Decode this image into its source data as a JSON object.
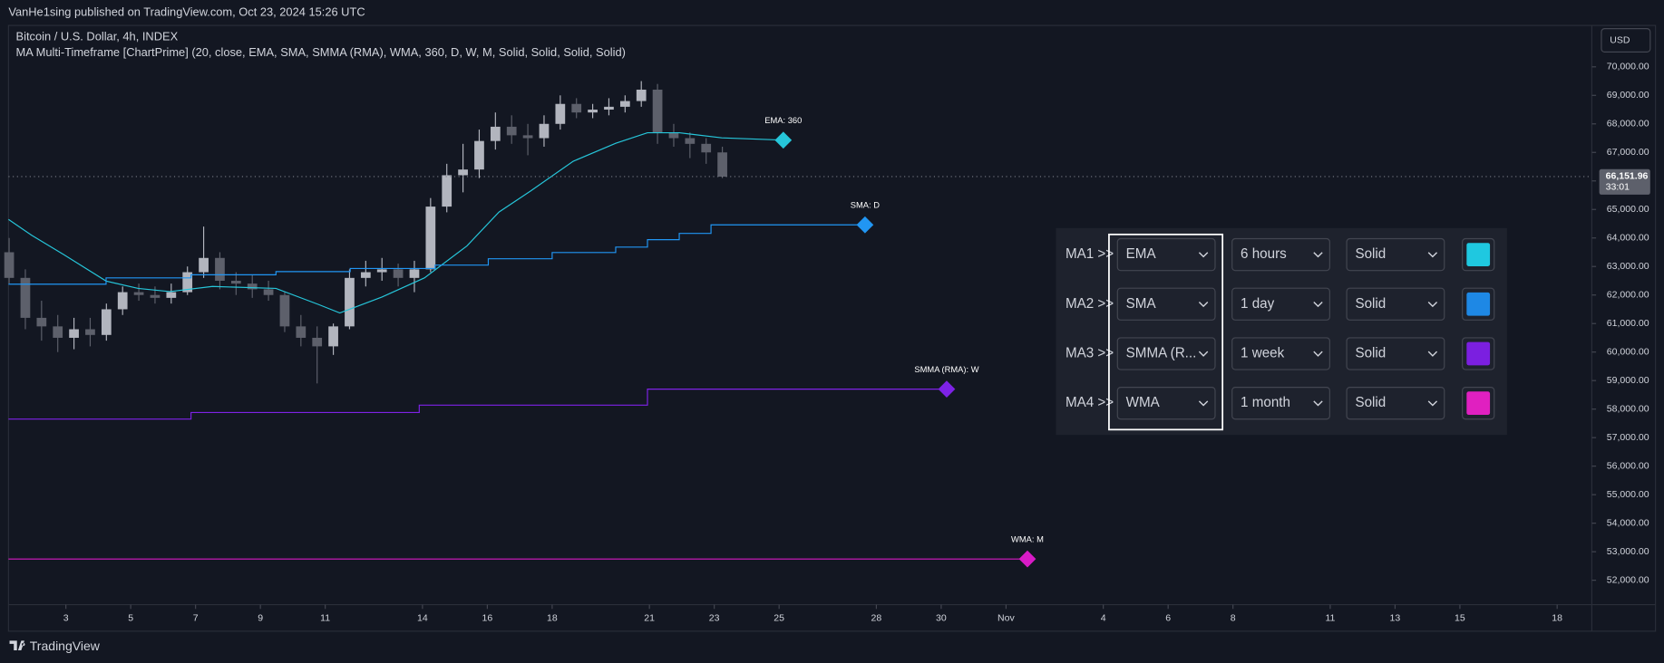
{
  "header": {
    "title": "VanHe1sing published on TradingView.com, Oct 23, 2024 15:26 UTC"
  },
  "chart_data": {
    "type": "candlestick",
    "title": "Bitcoin / U.S. Dollar, 4h, INDEX",
    "subtitle": "MA Multi-Timeframe [ChartPrime] (20, close, EMA, SMA, SMMA (RMA), WMA, 360, D, W, M, Solid, Solid, Solid, Solid)",
    "currency": "USD",
    "up_color": "#b2b5be",
    "down_color": "#5d606b",
    "xlim": [
      1.23,
      50.07
    ],
    "xticks": [
      3,
      5,
      7,
      9,
      11,
      14,
      16,
      18,
      21,
      23,
      25,
      28,
      30,
      {
        "value": 32,
        "label": "Nov"
      },
      {
        "value": 35,
        "label": "4"
      },
      {
        "value": 37,
        "label": "6"
      },
      {
        "value": 39,
        "label": "8"
      },
      {
        "value": 42,
        "label": "11"
      },
      {
        "value": 44,
        "label": "13"
      },
      {
        "value": 46,
        "label": "15"
      },
      {
        "value": 49,
        "label": "18"
      }
    ],
    "ylim": [
      51330,
      71525
    ],
    "yticks": [
      {
        "value": 52000,
        "label": "52,000.00"
      },
      {
        "value": 53000,
        "label": "53,000.00"
      },
      {
        "value": 54000,
        "label": "54,000.00"
      },
      {
        "value": 55000,
        "label": "55,000.00"
      },
      {
        "value": 56000,
        "label": "56,000.00"
      },
      {
        "value": 57000,
        "label": "57,000.00"
      },
      {
        "value": 58000,
        "label": "58,000.00"
      },
      {
        "value": 59000,
        "label": "59,000.00"
      },
      {
        "value": 60000,
        "label": "60,000.00"
      },
      {
        "value": 61000,
        "label": "61,000.00"
      },
      {
        "value": 62000,
        "label": "62,000.00"
      },
      {
        "value": 63000,
        "label": "63,000.00"
      },
      {
        "value": 64000,
        "label": "64,000.00"
      },
      {
        "value": 65000,
        "label": "65,000.00"
      },
      {
        "value": 66000,
        "label": "66,000.00"
      },
      {
        "value": 67000,
        "label": "67,000.00"
      },
      {
        "value": 68000,
        "label": "68,000.00"
      },
      {
        "value": 69000,
        "label": "69,000.00"
      },
      {
        "value": 70000,
        "label": "70,000.00"
      }
    ],
    "last_price": {
      "value": 66151.96,
      "label": "66,151.96"
    },
    "countdown": "33:01",
    "candles": {
      "x": [
        1.25,
        1.75,
        2.25,
        2.75,
        3.25,
        3.75,
        4.25,
        4.75,
        5.25,
        5.75,
        6.25,
        6.75,
        7.25,
        7.75,
        8.25,
        8.75,
        9.25,
        9.75,
        10.25,
        10.75,
        11.25,
        11.75,
        12.25,
        12.75,
        13.25,
        13.75,
        14.25,
        14.75,
        15.25,
        15.75,
        16.25,
        16.75,
        17.25,
        17.75,
        18.25,
        18.75,
        19.25,
        19.75,
        20.25,
        20.75,
        21.25,
        21.75,
        22.25,
        22.75,
        23.25
      ],
      "open": [
        63500,
        62600,
        61200,
        60900,
        60500,
        60800,
        60600,
        61500,
        62100,
        62000,
        61900,
        62100,
        62800,
        63300,
        62500,
        62400,
        62200,
        62000,
        60900,
        60500,
        60200,
        60900,
        62600,
        62800,
        62900,
        62600,
        62900,
        65100,
        66200,
        66400,
        67400,
        67900,
        67600,
        67500,
        68000,
        68700,
        68400,
        68500,
        68600,
        68800,
        69200,
        67700,
        67500,
        67300,
        67000
      ],
      "high": [
        64000,
        62900,
        61800,
        61300,
        61200,
        61200,
        61700,
        62300,
        62400,
        62300,
        62400,
        63000,
        64400,
        63500,
        62800,
        62700,
        62500,
        62100,
        61300,
        60900,
        61000,
        62900,
        63200,
        63300,
        63100,
        63200,
        65400,
        66600,
        67300,
        67800,
        68400,
        68300,
        68000,
        68300,
        69000,
        68900,
        68700,
        68900,
        69000,
        69500,
        69400,
        68000,
        67700,
        67500,
        67200
      ],
      "low": [
        62400,
        60800,
        60400,
        60000,
        60100,
        60200,
        60400,
        61300,
        61800,
        61700,
        61700,
        62000,
        62600,
        62200,
        62000,
        61900,
        61800,
        60700,
        60200,
        58900,
        59900,
        60800,
        62300,
        62500,
        62300,
        62100,
        62800,
        64900,
        65600,
        66100,
        67100,
        67300,
        66900,
        67200,
        67800,
        68200,
        68200,
        68300,
        68400,
        68600,
        67300,
        67200,
        66800,
        66600,
        66100
      ],
      "close": [
        62600,
        61200,
        60900,
        60500,
        60800,
        60600,
        61500,
        62100,
        62000,
        61900,
        62100,
        62800,
        63300,
        62500,
        62400,
        62200,
        62000,
        60900,
        60500,
        60200,
        60900,
        62600,
        62800,
        62900,
        62600,
        62900,
        65100,
        66200,
        66400,
        67400,
        67900,
        67600,
        67500,
        68000,
        68700,
        68400,
        68500,
        68600,
        68800,
        69200,
        67700,
        67500,
        67300,
        67000,
        66150
      ]
    },
    "series": [
      {
        "name": "EMA: 360",
        "color": "#26c6da",
        "x": [
          1.23,
          1.95,
          2.93,
          4.24,
          5.23,
          6.21,
          7.52,
          9.48,
          10.79,
          11.45,
          12.75,
          14.06,
          15.37,
          16.36,
          17.34,
          18.65,
          19.96,
          20.94,
          21.92,
          23.23,
          25.13
        ],
        "values": [
          64650,
          64090,
          63420,
          62490,
          62230,
          62120,
          62300,
          62230,
          61670,
          61370,
          61930,
          62600,
          63720,
          64910,
          65650,
          66690,
          67320,
          67690,
          67690,
          67510,
          67430
        ]
      },
      {
        "name": "SMA: D",
        "color": "#2196f3",
        "x": [
          1.23,
          4.24,
          4.24,
          6.86,
          6.86,
          9.48,
          9.48,
          11.77,
          11.77,
          14.39,
          14.39,
          16.03,
          16.03,
          18.0,
          18.0,
          19.96,
          19.96,
          20.94,
          20.94,
          21.92,
          21.92,
          22.9,
          22.9,
          27.65
        ],
        "values": [
          62380,
          62380,
          62600,
          62600,
          62710,
          62710,
          62820,
          62820,
          62930,
          62930,
          63050,
          63050,
          63270,
          63270,
          63490,
          63490,
          63680,
          63680,
          63940,
          63940,
          64160,
          64160,
          64460,
          64460
        ]
      },
      {
        "name": "SMMA (RMA): W",
        "color": "#7e22e6",
        "x": [
          1.23,
          6.86,
          6.86,
          13.9,
          13.9,
          20.94,
          20.94,
          30.17
        ],
        "values": [
          57650,
          57650,
          57880,
          57880,
          58140,
          58140,
          58700,
          58700
        ]
      },
      {
        "name": "WMA: M",
        "color": "#d81bc6",
        "x": [
          1.23,
          32.66
        ],
        "values": [
          52745,
          52745
        ]
      }
    ]
  },
  "settings_panel": {
    "rows": [
      {
        "label": "MA1 >>",
        "type": "EMA",
        "timeframe": "6 hours",
        "style": "Solid",
        "color": "#1fc8e0"
      },
      {
        "label": "MA2 >>",
        "type": "SMA",
        "timeframe": "1 day",
        "style": "Solid",
        "color": "#1e88e5"
      },
      {
        "label": "MA3 >>",
        "type": "SMMA (R...",
        "timeframe": "1 week",
        "style": "Solid",
        "color": "#7b1fe0"
      },
      {
        "label": "MA4 >>",
        "type": "WMA",
        "timeframe": "1 month",
        "style": "Solid",
        "color": "#e020c0"
      }
    ]
  },
  "footer": {
    "brand": "TradingView"
  }
}
